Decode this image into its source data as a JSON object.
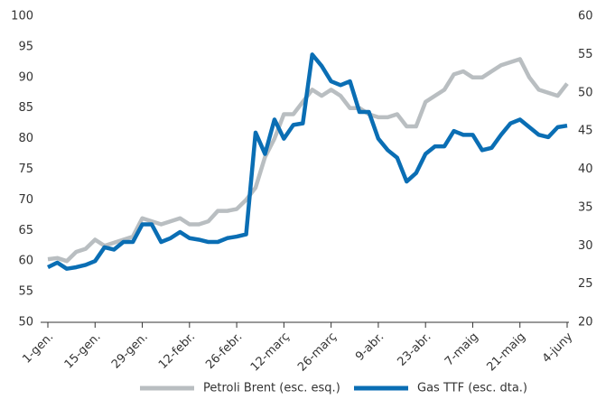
{
  "chart_data": {
    "type": "line",
    "categories": [
      "1-gen.",
      null,
      null,
      null,
      null,
      "15-gen.",
      null,
      null,
      null,
      null,
      "29-gen.",
      null,
      null,
      null,
      null,
      "12-febr.",
      null,
      null,
      null,
      null,
      "26-febr.",
      null,
      null,
      null,
      null,
      "12-març",
      null,
      null,
      null,
      null,
      "26-març",
      null,
      null,
      null,
      null,
      "9-abr.",
      null,
      null,
      null,
      null,
      "23-abr.",
      null,
      null,
      null,
      null,
      "7-maig",
      null,
      null,
      null,
      null,
      "21-maig",
      null,
      null,
      null,
      null,
      "4-juny"
    ],
    "series": [
      {
        "name": "Petroli Brent (esc. esq.)",
        "color": "#b9bec1",
        "values": [
          60.3,
          60.5,
          60,
          61.5,
          62,
          63.5,
          62.5,
          63,
          63.5,
          64,
          67,
          66.5,
          66,
          66.5,
          67,
          66,
          66,
          66.5,
          68.2,
          68.2,
          68.5,
          70,
          72,
          77,
          80,
          84,
          84,
          86,
          88,
          87,
          88,
          87,
          85,
          85,
          84,
          83.5,
          83.5,
          84,
          82,
          82,
          86,
          87,
          88,
          90.5,
          91,
          90,
          90,
          91,
          92,
          92.5,
          93,
          90,
          88,
          87.5,
          87,
          89
        ]
      },
      {
        "name": "Gas TTF (esc. dta.)",
        "color": "#0a6eb4",
        "axis": "y2",
        "values": [
          27.2,
          27.8,
          27,
          27.2,
          27.5,
          28,
          29.8,
          29.5,
          30.5,
          30.5,
          32.8,
          32.8,
          30.5,
          31,
          31.8,
          31,
          30.8,
          30.5,
          30.5,
          31,
          31.2,
          31.5,
          44.8,
          42,
          46.5,
          44,
          45.8,
          46,
          55,
          53.5,
          51.5,
          51,
          51.5,
          47.5,
          47.5,
          44,
          42.5,
          41.5,
          38.4,
          39.5,
          42,
          43,
          43,
          45,
          44.5,
          44.5,
          42.5,
          42.8,
          44.5,
          46,
          46.5,
          45.5,
          44.5,
          44.2,
          45.5,
          45.7
        ]
      }
    ],
    "ylim": [
      50,
      100
    ],
    "yticks": [
      50,
      55,
      60,
      65,
      70,
      75,
      80,
      85,
      90,
      95,
      100
    ],
    "y2lim": [
      20,
      60
    ],
    "y2ticks": [
      20,
      25,
      30,
      35,
      40,
      45,
      50,
      55,
      60
    ],
    "grid": false,
    "legend": "bottom"
  }
}
